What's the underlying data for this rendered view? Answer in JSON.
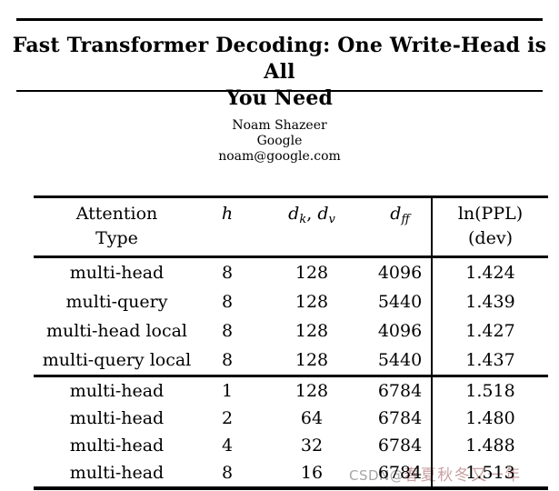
{
  "paper": {
    "title_line1": "Fast Transformer Decoding: One Write-Head is All",
    "title_line2": "You Need",
    "author": {
      "name": "Noam Shazeer",
      "affiliation": "Google",
      "email": "noam@google.com"
    }
  },
  "table": {
    "header": {
      "col1_line1": "Attention",
      "col1_line2": "Type",
      "h": "h",
      "dk_base": "d",
      "dk_sub": "k",
      "comma": ", ",
      "dv_base": "d",
      "dv_sub": "v",
      "dff_base": "d",
      "dff_sub": "ff",
      "col5_line1": "ln(PPL)",
      "col5_line2": "(dev)"
    },
    "rows": [
      {
        "type": "multi-head",
        "h": "8",
        "dk_dv": "128",
        "dff": "4096",
        "ppl": "1.424"
      },
      {
        "type": "multi-query",
        "h": "8",
        "dk_dv": "128",
        "dff": "5440",
        "ppl": "1.439"
      },
      {
        "type": "multi-head local",
        "h": "8",
        "dk_dv": "128",
        "dff": "4096",
        "ppl": "1.427"
      },
      {
        "type": "multi-query local",
        "h": "8",
        "dk_dv": "128",
        "dff": "5440",
        "ppl": "1.437"
      },
      {
        "type": "multi-head",
        "h": "1",
        "dk_dv": "128",
        "dff": "6784",
        "ppl": "1.518"
      },
      {
        "type": "multi-head",
        "h": "2",
        "dk_dv": "64",
        "dff": "6784",
        "ppl": "1.480"
      },
      {
        "type": "multi-head",
        "h": "4",
        "dk_dv": "32",
        "dff": "6784",
        "ppl": "1.488"
      },
      {
        "type": "multi-head",
        "h": "8",
        "dk_dv": "16",
        "dff": "6784",
        "ppl": "1.513"
      }
    ],
    "best_row_index": 0
  },
  "watermark": {
    "prefix": "CSDN@",
    "user": "春夏秋冬又一年",
    "prefix_color": "#a6a6a6",
    "user_color": "#c9a2a2"
  },
  "colors": {
    "background": "#ffffff",
    "text": "#000000",
    "rule": "#000000"
  }
}
